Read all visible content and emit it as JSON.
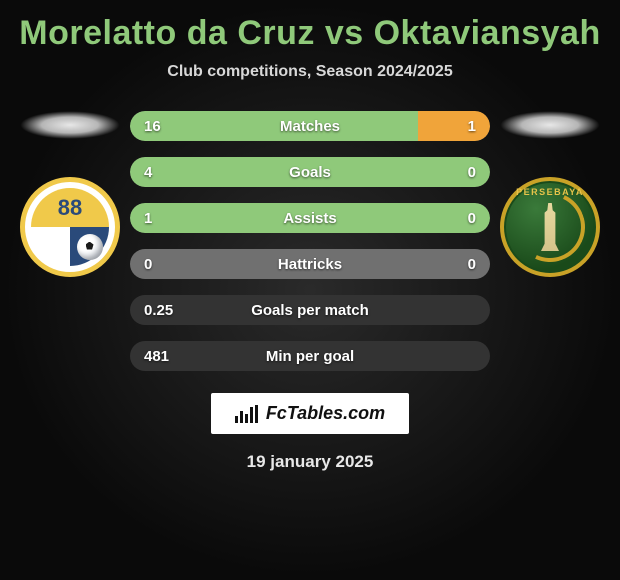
{
  "title_color": "#8fc97a",
  "title": "Morelatto da Cruz vs Oktaviansyah",
  "subtitle": "Club competitions, Season 2024/2025",
  "date": "19 january 2025",
  "watermark": "FcTables.com",
  "teamA": {
    "badge_number": "88"
  },
  "teamB": {
    "badge_top_text": "PERSEBAYA"
  },
  "colors": {
    "bar_dark": "#333333",
    "bar_grey": "#707070",
    "player_a": "#8fc97a",
    "player_b": "#f0a43a"
  },
  "stats": [
    {
      "label": "Matches",
      "a": "16",
      "b": "1",
      "a_pct": 80,
      "b_pct": 20,
      "mode": "split"
    },
    {
      "label": "Goals",
      "a": "4",
      "b": "0",
      "a_pct": 100,
      "b_pct": 0,
      "mode": "a_only"
    },
    {
      "label": "Assists",
      "a": "1",
      "b": "0",
      "a_pct": 100,
      "b_pct": 0,
      "mode": "a_only"
    },
    {
      "label": "Hattricks",
      "a": "0",
      "b": "0",
      "a_pct": 0,
      "b_pct": 0,
      "mode": "none"
    },
    {
      "label": "Goals per match",
      "a": "0.25",
      "b": "",
      "a_pct": 100,
      "b_pct": 0,
      "mode": "full_dark"
    },
    {
      "label": "Min per goal",
      "a": "481",
      "b": "",
      "a_pct": 100,
      "b_pct": 0,
      "mode": "full_dark"
    }
  ]
}
